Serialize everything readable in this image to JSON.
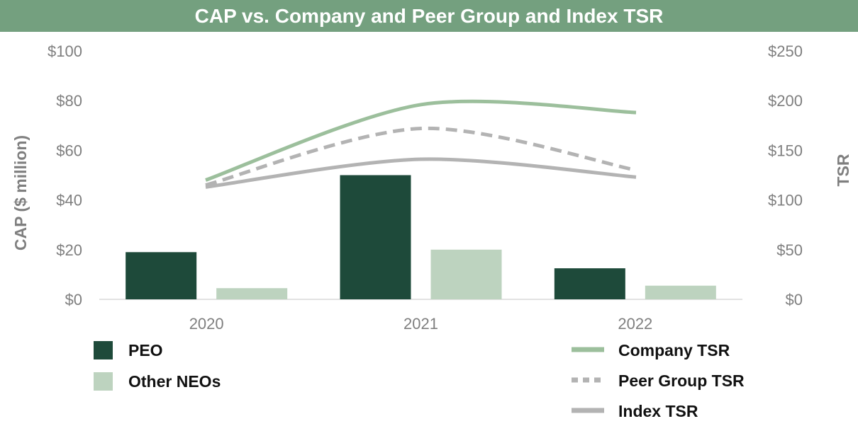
{
  "chart_data": {
    "type": "bar",
    "title": "CAP vs. Company and Peer Group and Index TSR",
    "categories": [
      "2020",
      "2021",
      "2022"
    ],
    "ylabel": "CAP ($ million)",
    "y2label": "TSR",
    "ylim": [
      0,
      100
    ],
    "y2lim": [
      0,
      250
    ],
    "yticks": [
      "$0",
      "$20",
      "$40",
      "$60",
      "$80",
      "$100"
    ],
    "y2ticks": [
      "$0",
      "$50",
      "$100",
      "$150",
      "$200",
      "$250"
    ],
    "bar_series": [
      {
        "name": "PEO",
        "values": [
          19,
          50,
          12.5
        ],
        "color": "#1e4a3a"
      },
      {
        "name": "Other NEOs",
        "values": [
          4.5,
          20,
          5.5
        ],
        "color": "#bdd3bf"
      }
    ],
    "line_series": [
      {
        "name": "Company TSR",
        "values": [
          120,
          196,
          188
        ],
        "color": "#9cbf9c",
        "style": "solid"
      },
      {
        "name": "Peer Group TSR",
        "values": [
          115,
          172,
          130
        ],
        "color": "#b3b3b3",
        "style": "dashed"
      },
      {
        "name": "Index TSR",
        "values": [
          113,
          141,
          123
        ],
        "color": "#b3b3b3",
        "style": "solid"
      }
    ],
    "legend_position": "bottom",
    "colors": {
      "title_bar": "#74a07f",
      "axis_text": "#7f7f7f"
    }
  }
}
